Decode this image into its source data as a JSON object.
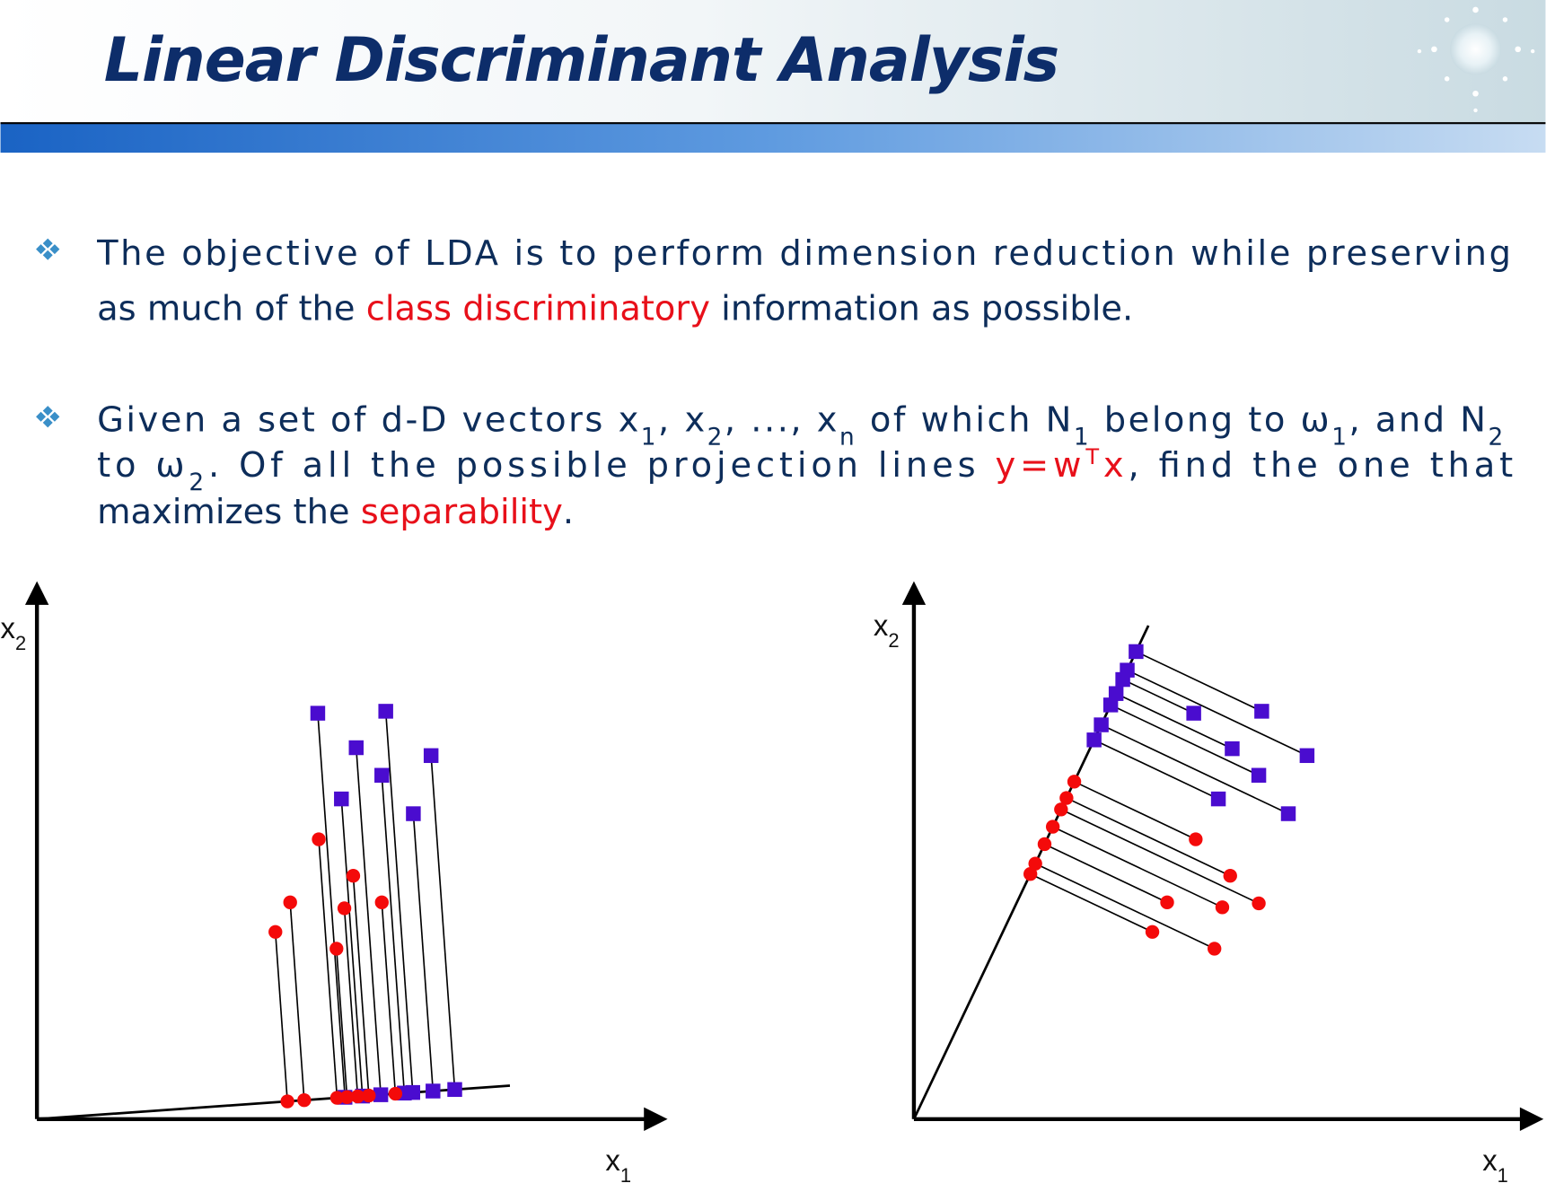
{
  "header": {
    "title": "Linear Discriminant Analysis"
  },
  "bullets": [
    {
      "lines": [
        [
          "The objective of LDA is to perform dimension reduction while preserving"
        ],
        [
          "as much of the ",
          "class discriminatory",
          " information as possible."
        ]
      ]
    },
    {
      "lines": [
        [
          "Given a set of d-D vectors x",
          "1",
          ", x",
          "2",
          ", ..., x",
          "n",
          " of which N",
          "1",
          " belong to ω",
          "1",
          ", and N",
          "2"
        ],
        [
          "to ω",
          "2",
          ". Of all the possible projection lines ",
          "y=w",
          "T",
          "x",
          ", find the one that"
        ],
        [
          "maximizes the ",
          "separability",
          "."
        ]
      ]
    }
  ],
  "figures": [
    {
      "x_axis": [
        "x",
        "1"
      ],
      "y_axis": [
        "x",
        "2"
      ]
    },
    {
      "x_axis": [
        "x",
        "1"
      ],
      "y_axis": [
        "x",
        "2"
      ]
    }
  ]
}
